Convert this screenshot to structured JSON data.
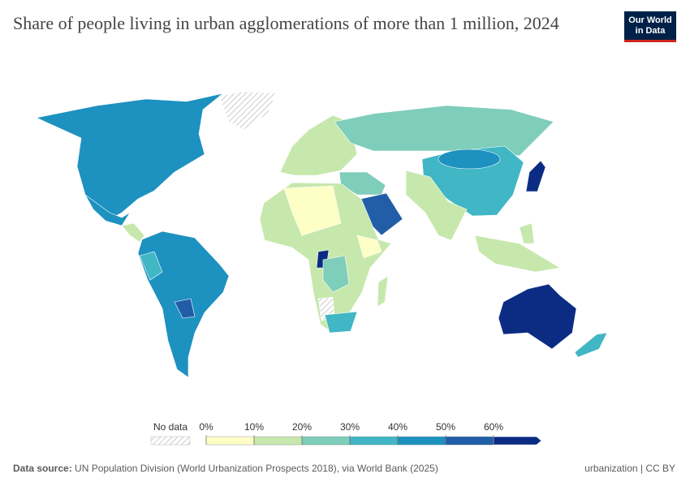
{
  "header": {
    "title": "Share of people living in urban agglomerations of more than 1 million, 2024",
    "logo": [
      "Our World",
      "in Data"
    ]
  },
  "legend": {
    "no_data_label": "No data",
    "ticks": [
      {
        "value": 0,
        "label": "0%"
      },
      {
        "value": 10,
        "label": "10%"
      },
      {
        "value": 20,
        "label": "20%"
      },
      {
        "value": 30,
        "label": "30%"
      },
      {
        "value": 40,
        "label": "40%"
      },
      {
        "value": 50,
        "label": "50%"
      },
      {
        "value": 60,
        "label": "60%"
      }
    ],
    "colors": [
      "#feffc6",
      "#c7e8ad",
      "#7fcdbb",
      "#41b6c4",
      "#1d91c0",
      "#225ea8",
      "#0c2c84"
    ]
  },
  "footer": {
    "source_label": "Data source:",
    "source": "UN Population Division (World Urbanization Prospects 2018), via World Bank (2025)",
    "license": "urbanization | CC BY"
  }
}
